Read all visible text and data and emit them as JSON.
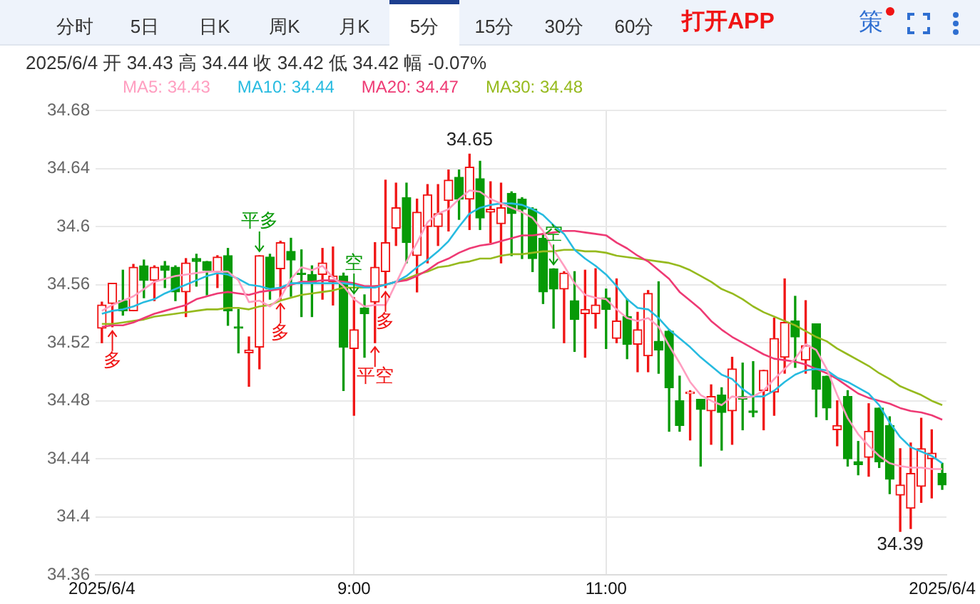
{
  "chart_data": {
    "type": "candlestick",
    "subtitle": "2025/6/4 开 34.43 高 34.44 收 34.42 低 34.42 幅 -0.07%",
    "x": [
      "2025-06-04T07:00",
      "2025-06-04T07:05",
      "2025-06-04T07:10",
      "2025-06-04T07:15",
      "2025-06-04T07:20",
      "2025-06-04T07:25",
      "2025-06-04T07:30",
      "2025-06-04T07:35",
      "2025-06-04T07:40",
      "2025-06-04T07:45",
      "2025-06-04T07:50",
      "2025-06-04T07:55",
      "2025-06-04T08:00",
      "2025-06-04T08:05",
      "2025-06-04T08:10",
      "2025-06-04T08:15",
      "2025-06-04T08:20",
      "2025-06-04T08:25",
      "2025-06-04T08:30",
      "2025-06-04T08:35",
      "2025-06-04T08:40",
      "2025-06-04T08:45",
      "2025-06-04T08:50",
      "2025-06-04T08:55",
      "2025-06-04T09:00",
      "2025-06-04T09:05",
      "2025-06-04T09:10",
      "2025-06-04T09:15",
      "2025-06-04T09:20",
      "2025-06-04T09:25",
      "2025-06-04T09:30",
      "2025-06-04T09:35",
      "2025-06-04T09:40",
      "2025-06-04T09:45",
      "2025-06-04T09:50",
      "2025-06-04T09:55",
      "2025-06-04T10:00",
      "2025-06-04T10:05",
      "2025-06-04T10:10",
      "2025-06-04T10:15",
      "2025-06-04T10:20",
      "2025-06-04T10:25",
      "2025-06-04T10:30",
      "2025-06-04T10:35",
      "2025-06-04T10:40",
      "2025-06-04T10:45",
      "2025-06-04T10:50",
      "2025-06-04T10:55",
      "2025-06-04T11:00",
      "2025-06-04T11:05",
      "2025-06-04T11:10",
      "2025-06-04T11:15",
      "2025-06-04T11:20",
      "2025-06-04T11:25",
      "2025-06-04T11:30",
      "2025-06-04T11:35",
      "2025-06-04T11:40",
      "2025-06-04T11:45",
      "2025-06-04T11:50",
      "2025-06-04T11:55",
      "2025-06-04T12:00",
      "2025-06-04T12:05",
      "2025-06-04T12:10",
      "2025-06-04T12:15",
      "2025-06-04T12:20",
      "2025-06-04T12:25",
      "2025-06-04T12:30",
      "2025-06-04T12:35",
      "2025-06-04T12:40",
      "2025-06-04T12:45",
      "2025-06-04T12:50",
      "2025-06-04T12:55",
      "2025-06-04T13:00",
      "2025-06-04T13:05",
      "2025-06-04T13:10",
      "2025-06-04T13:15",
      "2025-06-04T13:20",
      "2025-06-04T13:25",
      "2025-06-04T13:30",
      "2025-06-04T13:35",
      "2025-06-04T13:40"
    ],
    "ohlc": [
      [
        34.53,
        34.548,
        34.52,
        34.546
      ],
      [
        34.547,
        34.561,
        34.531,
        34.561
      ],
      [
        34.549,
        34.57,
        34.539,
        34.542
      ],
      [
        34.542,
        34.574,
        34.542,
        34.572
      ],
      [
        34.573,
        34.577,
        34.551,
        34.563
      ],
      [
        34.563,
        34.573,
        34.549,
        34.572
      ],
      [
        34.573,
        34.576,
        34.558,
        34.57
      ],
      [
        34.572,
        34.573,
        34.549,
        34.555
      ],
      [
        34.555,
        34.578,
        34.538,
        34.575
      ],
      [
        34.578,
        34.581,
        34.559,
        34.576
      ],
      [
        34.576,
        34.576,
        34.553,
        34.57
      ],
      [
        34.569,
        34.58,
        34.558,
        34.579
      ],
      [
        34.58,
        34.585,
        34.532,
        34.542
      ],
      [
        34.531,
        34.543,
        34.513,
        34.53
      ],
      [
        34.513,
        34.524,
        34.49,
        34.515
      ],
      [
        34.517,
        34.58,
        34.502,
        34.58
      ],
      [
        34.579,
        34.581,
        34.55,
        34.557
      ],
      [
        34.571,
        34.59,
        34.55,
        34.589
      ],
      [
        34.583,
        34.592,
        34.552,
        34.577
      ],
      [
        34.568,
        34.584,
        34.538,
        34.567
      ],
      [
        34.567,
        34.573,
        34.538,
        34.561
      ],
      [
        34.567,
        34.585,
        34.55,
        34.575
      ],
      [
        34.562,
        34.586,
        34.546,
        34.566
      ],
      [
        34.566,
        34.568,
        34.487,
        34.517
      ],
      [
        34.516,
        34.551,
        34.47,
        34.529
      ],
      [
        34.544,
        34.553,
        34.51,
        34.54
      ],
      [
        34.548,
        34.589,
        34.52,
        34.572
      ],
      [
        34.569,
        34.632,
        34.558,
        34.589
      ],
      [
        34.599,
        34.63,
        34.587,
        34.613
      ],
      [
        34.62,
        34.63,
        34.575,
        34.589
      ],
      [
        34.58,
        34.619,
        34.555,
        34.61
      ],
      [
        34.6,
        34.629,
        34.575,
        34.622
      ],
      [
        34.6,
        34.629,
        34.587,
        34.609
      ],
      [
        34.618,
        34.639,
        34.597,
        34.632
      ],
      [
        34.634,
        34.639,
        34.605,
        34.619
      ],
      [
        34.619,
        34.65,
        34.598,
        34.641
      ],
      [
        34.633,
        34.645,
        34.598,
        34.606
      ],
      [
        34.61,
        34.631,
        34.589,
        34.612
      ],
      [
        34.602,
        34.63,
        34.575,
        34.613
      ],
      [
        34.623,
        34.624,
        34.58,
        34.609
      ],
      [
        34.619,
        34.62,
        34.578,
        34.612
      ],
      [
        34.612,
        34.613,
        34.569,
        34.578
      ],
      [
        34.592,
        34.595,
        34.547,
        34.555
      ],
      [
        34.571,
        34.571,
        34.53,
        34.557
      ],
      [
        34.557,
        34.569,
        34.52,
        34.568
      ],
      [
        34.549,
        34.569,
        34.514,
        34.536
      ],
      [
        34.54,
        34.57,
        34.51,
        34.543
      ],
      [
        34.54,
        34.571,
        34.53,
        34.546
      ],
      [
        34.551,
        34.557,
        34.516,
        34.543
      ],
      [
        34.523,
        34.564,
        34.52,
        34.535
      ],
      [
        34.538,
        34.55,
        34.509,
        34.519
      ],
      [
        34.519,
        34.541,
        34.5,
        34.529
      ],
      [
        34.511,
        34.556,
        34.5,
        34.554
      ],
      [
        34.521,
        34.562,
        34.499,
        34.515
      ],
      [
        34.528,
        34.529,
        34.459,
        34.489
      ],
      [
        34.48,
        34.497,
        34.459,
        34.463
      ],
      [
        34.485,
        34.487,
        34.453,
        34.486
      ],
      [
        34.481,
        34.481,
        34.435,
        34.474
      ],
      [
        34.473,
        34.491,
        34.45,
        34.483
      ],
      [
        34.484,
        34.489,
        34.446,
        34.472
      ],
      [
        34.473,
        34.51,
        34.45,
        34.502
      ],
      [
        34.483,
        34.506,
        34.46,
        34.481
      ],
      [
        34.473,
        34.507,
        34.469,
        34.472
      ],
      [
        34.487,
        34.501,
        34.46,
        34.501
      ],
      [
        34.486,
        34.537,
        34.47,
        34.523
      ],
      [
        34.51,
        34.564,
        34.499,
        34.534
      ],
      [
        34.535,
        34.552,
        34.503,
        34.524
      ],
      [
        34.508,
        34.549,
        34.499,
        34.518
      ],
      [
        34.533,
        34.533,
        34.469,
        34.488
      ],
      [
        34.497,
        34.497,
        34.467,
        34.475
      ],
      [
        34.46,
        34.48,
        34.449,
        34.463
      ],
      [
        34.483,
        34.487,
        34.435,
        34.44
      ],
      [
        34.438,
        34.452,
        34.429,
        34.436
      ],
      [
        34.441,
        34.478,
        34.428,
        34.459
      ],
      [
        34.475,
        34.475,
        34.434,
        34.438
      ],
      [
        34.463,
        34.469,
        34.416,
        34.426
      ],
      [
        34.415,
        34.447,
        34.39,
        34.422
      ],
      [
        34.406,
        34.451,
        34.392,
        34.43
      ],
      [
        34.421,
        34.468,
        34.41,
        34.447
      ],
      [
        34.44,
        34.46,
        34.413,
        34.444
      ],
      [
        34.43,
        34.437,
        34.419,
        34.422
      ]
    ],
    "colors": [
      "#f01414",
      "#f01414",
      "#079a07",
      "#f01414",
      "#079a07",
      "#f01414",
      "#079a07",
      "#079a07",
      "#f01414",
      "#079a07",
      "#079a07",
      "#f01414",
      "#079a07",
      "#079a07",
      "#f01414",
      "#f01414",
      "#079a07",
      "#f01414",
      "#079a07",
      "#079a07",
      "#079a07",
      "#f01414",
      "#f01414",
      "#079a07",
      "#f01414",
      "#079a07",
      "#f01414",
      "#f01414",
      "#f01414",
      "#079a07",
      "#f01414",
      "#f01414",
      "#f01414",
      "#f01414",
      "#079a07",
      "#f01414",
      "#079a07",
      "#f01414",
      "#f01414",
      "#079a07",
      "#079a07",
      "#079a07",
      "#079a07",
      "#079a07",
      "#f01414",
      "#079a07",
      "#f01414",
      "#f01414",
      "#079a07",
      "#f01414",
      "#079a07",
      "#f01414",
      "#f01414",
      "#079a07",
      "#079a07",
      "#079a07",
      "#f01414",
      "#079a07",
      "#f01414",
      "#079a07",
      "#f01414",
      "#079a07",
      "#079a07",
      "#f01414",
      "#f01414",
      "#f01414",
      "#079a07",
      "#f01414",
      "#079a07",
      "#079a07",
      "#f01414",
      "#079a07",
      "#079a07",
      "#f01414",
      "#079a07",
      "#079a07",
      "#f01414",
      "#f01414",
      "#f01414",
      "#f01414",
      "#079a07"
    ],
    "series": [
      {
        "type": "line",
        "name": "MA5: 34.43",
        "color": "#ff9ec0",
        "values": [
          34.542,
          34.546,
          34.549,
          34.552,
          34.557,
          34.562,
          34.564,
          34.566,
          34.567,
          34.568,
          34.569,
          34.569,
          34.569,
          34.563,
          34.548,
          34.549,
          34.545,
          34.551,
          34.564,
          34.572,
          34.57,
          34.573,
          34.565,
          34.559,
          34.55,
          34.545,
          34.546,
          34.546,
          34.561,
          34.576,
          34.589,
          34.603,
          34.609,
          34.612,
          34.619,
          34.625,
          34.624,
          34.619,
          34.616,
          34.613,
          34.61,
          34.606,
          34.597,
          34.584,
          34.573,
          34.561,
          34.553,
          34.551,
          34.55,
          34.543,
          34.537,
          34.535,
          34.537,
          34.531,
          34.518,
          34.506,
          34.493,
          34.484,
          34.48,
          34.477,
          34.483,
          34.482,
          34.483,
          34.487,
          34.495,
          34.502,
          34.509,
          34.519,
          34.515,
          34.502,
          34.484,
          34.468,
          34.457,
          34.449,
          34.442,
          34.437,
          34.435,
          34.434,
          34.434,
          34.433,
          34.433
        ]
      },
      {
        "type": "line",
        "name": "MA10: 34.44",
        "color": "#27bbe0",
        "values": [
          34.54,
          34.542,
          34.543,
          34.545,
          34.548,
          34.55,
          34.554,
          34.557,
          34.56,
          34.563,
          34.566,
          34.568,
          34.567,
          34.564,
          34.56,
          34.559,
          34.557,
          34.558,
          34.561,
          34.561,
          34.561,
          34.561,
          34.561,
          34.561,
          34.56,
          34.558,
          34.558,
          34.56,
          34.562,
          34.566,
          34.572,
          34.577,
          34.583,
          34.59,
          34.6,
          34.609,
          34.613,
          34.615,
          34.616,
          34.616,
          34.615,
          34.612,
          34.608,
          34.601,
          34.595,
          34.584,
          34.578,
          34.573,
          34.567,
          34.559,
          34.55,
          34.544,
          34.543,
          34.537,
          34.529,
          34.523,
          34.517,
          34.51,
          34.504,
          34.498,
          34.495,
          34.488,
          34.483,
          34.483,
          34.487,
          34.493,
          34.498,
          34.501,
          34.502,
          34.501,
          34.496,
          34.493,
          34.489,
          34.485,
          34.477,
          34.465,
          34.455,
          34.448,
          34.445,
          34.442,
          34.437
        ]
      },
      {
        "type": "line",
        "name": "MA20: 34.47",
        "color": "#ee3a74",
        "values": [
          34.531,
          34.532,
          34.532,
          34.534,
          34.537,
          34.54,
          34.542,
          34.544,
          34.546,
          34.55,
          34.552,
          34.554,
          34.555,
          34.554,
          34.553,
          34.555,
          34.556,
          34.557,
          34.56,
          34.562,
          34.562,
          34.563,
          34.563,
          34.562,
          34.561,
          34.559,
          34.559,
          34.56,
          34.562,
          34.563,
          34.566,
          34.57,
          34.575,
          34.578,
          34.582,
          34.585,
          34.587,
          34.588,
          34.59,
          34.592,
          34.594,
          34.594,
          34.595,
          34.596,
          34.597,
          34.597,
          34.596,
          34.595,
          34.594,
          34.589,
          34.585,
          34.58,
          34.576,
          34.57,
          34.564,
          34.555,
          34.549,
          34.543,
          34.535,
          34.529,
          34.524,
          34.52,
          34.516,
          34.512,
          34.509,
          34.508,
          34.507,
          34.505,
          34.502,
          34.499,
          34.495,
          34.49,
          34.485,
          34.482,
          34.48,
          34.478,
          34.475,
          34.473,
          34.472,
          34.47,
          34.467
        ]
      },
      {
        "type": "line",
        "name": "MA30: 34.48",
        "color": "#96ba1e",
        "values": [
          34.533,
          34.533,
          34.534,
          34.535,
          34.536,
          34.538,
          34.539,
          34.54,
          34.541,
          34.542,
          34.543,
          34.543,
          34.544,
          34.544,
          34.543,
          34.545,
          34.546,
          34.549,
          34.551,
          34.553,
          34.554,
          34.555,
          34.556,
          34.558,
          34.558,
          34.558,
          34.559,
          34.56,
          34.562,
          34.564,
          34.567,
          34.569,
          34.572,
          34.573,
          34.575,
          34.576,
          34.578,
          34.578,
          34.58,
          34.581,
          34.581,
          34.582,
          34.583,
          34.583,
          34.584,
          34.584,
          34.583,
          34.583,
          34.582,
          34.58,
          34.579,
          34.578,
          34.577,
          34.576,
          34.575,
          34.573,
          34.57,
          34.566,
          34.562,
          34.557,
          34.554,
          34.55,
          34.545,
          34.541,
          34.538,
          34.535,
          34.532,
          34.528,
          34.524,
          34.521,
          34.516,
          34.512,
          34.508,
          34.504,
          34.499,
          34.495,
          34.49,
          34.487,
          34.484,
          34.48,
          34.477
        ]
      }
    ],
    "xlim": [
      "2025-06-04T06:57",
      "2025-06-04T13:42"
    ],
    "xticks": [
      {
        "value": "2025-06-04T07:00",
        "label": "2025/6/4"
      },
      {
        "value": "2025-06-04T09:00",
        "label": "9:00"
      },
      {
        "value": "2025-06-04T11:00",
        "label": "11:00"
      },
      {
        "value": "2025-06-04T13:40",
        "label": "2025/6/4"
      }
    ],
    "ylim": [
      34.36,
      34.68
    ],
    "yticks": [
      34.36,
      34.4,
      34.44,
      34.48,
      34.52,
      34.56,
      34.6,
      34.64,
      34.68
    ],
    "grid": true,
    "legend": "top left",
    "annotations": [
      "分时",
      "5日",
      "日K",
      "周K",
      "月K",
      "5分",
      "15分",
      "30分",
      "60分",
      "打开APP",
      "策",
      {
        "text": "34.65",
        "x": "2025-06-04T09:55",
        "y": 34.65
      },
      {
        "text": "34.39",
        "x": "2025-06-04T13:20",
        "y": 34.39
      },
      {
        "text": "多",
        "x": "2025-06-04T07:05",
        "y": 34.531
      },
      {
        "text": "平多",
        "x": "2025-06-04T08:15",
        "y": 34.58
      },
      {
        "text": "多",
        "x": "2025-06-04T08:25",
        "y": 34.55
      },
      {
        "text": "空",
        "x": "2025-06-04T09:00",
        "y": 34.551
      },
      {
        "text": "平空",
        "x": "2025-06-04T09:10",
        "y": 34.52
      },
      {
        "text": "多",
        "x": "2025-06-04T09:15",
        "y": 34.558
      },
      {
        "text": "空",
        "x": "2025-06-04T10:35",
        "y": 34.571
      }
    ]
  }
}
